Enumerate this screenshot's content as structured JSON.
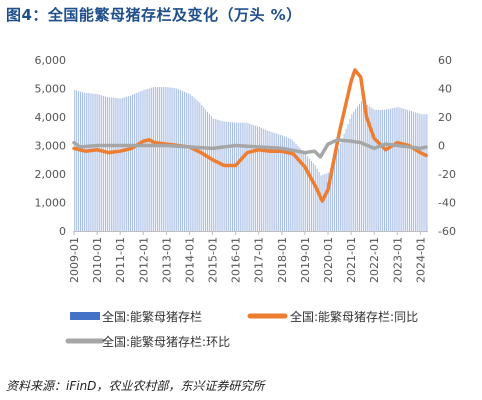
{
  "title": "图4：全国能繁母猪存栏及变化（万头 %）",
  "source": "资料来源：iFinD，农业农村部，东兴证券研究所",
  "colors": {
    "bars": "#a7bde6",
    "legend_bar": "#4472c4",
    "yoy": "#ed7d31",
    "mom": "#a6a6a6",
    "title": "#1f4e8c"
  },
  "chart_data": {
    "type": "bar+line",
    "x_dates": [
      "2009-01",
      "2010-01",
      "2011-01",
      "2012-01",
      "2013-01",
      "2014-01",
      "2015-01",
      "2016-01",
      "2017-01",
      "2018-01",
      "2019-01",
      "2020-01",
      "2021-01",
      "2022-01",
      "2023-01",
      "2024-01"
    ],
    "y_left": {
      "ticks": [
        "0",
        "1,000",
        "2,000",
        "3,000",
        "4,000",
        "5,000",
        "6,000"
      ],
      "min": 0,
      "max": 6000
    },
    "y_right": {
      "ticks": [
        "-60",
        "-40",
        "-20",
        "0",
        "20",
        "40",
        "60"
      ],
      "min": -60,
      "max": 60
    },
    "legend": [
      "全国:能繁母猪存栏",
      "全国:能繁母猪存栏:同比",
      "全国:能繁母猪存栏:环比"
    ],
    "series": [
      {
        "name": "全国:能繁母猪存栏",
        "axis": "left",
        "kind": "bar",
        "points": [
          [
            "2009-01",
            4950
          ],
          [
            "2009-06",
            4850
          ],
          [
            "2010-01",
            4800
          ],
          [
            "2010-06",
            4700
          ],
          [
            "2011-01",
            4650
          ],
          [
            "2011-06",
            4750
          ],
          [
            "2012-01",
            4950
          ],
          [
            "2012-06",
            5050
          ],
          [
            "2013-01",
            5050
          ],
          [
            "2013-06",
            5000
          ],
          [
            "2014-01",
            4800
          ],
          [
            "2014-06",
            4500
          ],
          [
            "2015-01",
            3950
          ],
          [
            "2015-06",
            3850
          ],
          [
            "2016-01",
            3800
          ],
          [
            "2016-06",
            3800
          ],
          [
            "2017-01",
            3650
          ],
          [
            "2017-06",
            3500
          ],
          [
            "2018-01",
            3350
          ],
          [
            "2018-06",
            3200
          ],
          [
            "2019-01",
            2700
          ],
          [
            "2019-06",
            2300
          ],
          [
            "2019-09",
            1950
          ],
          [
            "2020-01",
            2050
          ],
          [
            "2020-06",
            2900
          ],
          [
            "2021-01",
            4100
          ],
          [
            "2021-06",
            4550
          ],
          [
            "2022-01",
            4250
          ],
          [
            "2022-06",
            4250
          ],
          [
            "2023-01",
            4350
          ],
          [
            "2023-06",
            4250
          ],
          [
            "2024-01",
            4100
          ]
        ]
      },
      {
        "name": "全国:能繁母猪存栏:同比",
        "axis": "right",
        "kind": "line",
        "points": [
          [
            "2009-01",
            -2
          ],
          [
            "2009-07",
            -4
          ],
          [
            "2010-01",
            -3
          ],
          [
            "2010-07",
            -5
          ],
          [
            "2011-01",
            -4
          ],
          [
            "2011-07",
            -2
          ],
          [
            "2012-01",
            3
          ],
          [
            "2012-04",
            4
          ],
          [
            "2012-07",
            2
          ],
          [
            "2013-01",
            1
          ],
          [
            "2013-07",
            0
          ],
          [
            "2014-01",
            -1
          ],
          [
            "2014-07",
            -5
          ],
          [
            "2015-01",
            -10
          ],
          [
            "2015-07",
            -14
          ],
          [
            "2016-01",
            -14
          ],
          [
            "2016-07",
            -5
          ],
          [
            "2017-01",
            -3
          ],
          [
            "2017-07",
            -4
          ],
          [
            "2018-01",
            -4
          ],
          [
            "2018-07",
            -6
          ],
          [
            "2019-01",
            -15
          ],
          [
            "2019-07",
            -30
          ],
          [
            "2019-10",
            -39
          ],
          [
            "2020-01",
            -31
          ],
          [
            "2020-07",
            10
          ],
          [
            "2021-01",
            45
          ],
          [
            "2021-03",
            53
          ],
          [
            "2021-06",
            48
          ],
          [
            "2021-09",
            20
          ],
          [
            "2022-01",
            5
          ],
          [
            "2022-07",
            -3
          ],
          [
            "2023-01",
            2
          ],
          [
            "2023-07",
            0
          ],
          [
            "2024-01",
            -5
          ],
          [
            "2024-04",
            -7
          ]
        ]
      },
      {
        "name": "全国:能繁母猪存栏:环比",
        "axis": "right",
        "kind": "line",
        "points": [
          [
            "2009-01",
            2
          ],
          [
            "2009-04",
            -1
          ],
          [
            "2010-01",
            0
          ],
          [
            "2011-01",
            0
          ],
          [
            "2012-01",
            0
          ],
          [
            "2013-01",
            0
          ],
          [
            "2014-01",
            -1
          ],
          [
            "2015-01",
            -2
          ],
          [
            "2016-01",
            0
          ],
          [
            "2017-01",
            -1
          ],
          [
            "2018-01",
            -2
          ],
          [
            "2019-01",
            -5
          ],
          [
            "2019-06",
            -4
          ],
          [
            "2019-09",
            -8
          ],
          [
            "2020-01",
            1
          ],
          [
            "2020-06",
            4
          ],
          [
            "2021-01",
            3
          ],
          [
            "2021-06",
            2
          ],
          [
            "2022-01",
            -2
          ],
          [
            "2022-07",
            1
          ],
          [
            "2023-01",
            0
          ],
          [
            "2023-07",
            -1
          ],
          [
            "2024-01",
            -2
          ],
          [
            "2024-04",
            -1
          ]
        ]
      }
    ]
  }
}
